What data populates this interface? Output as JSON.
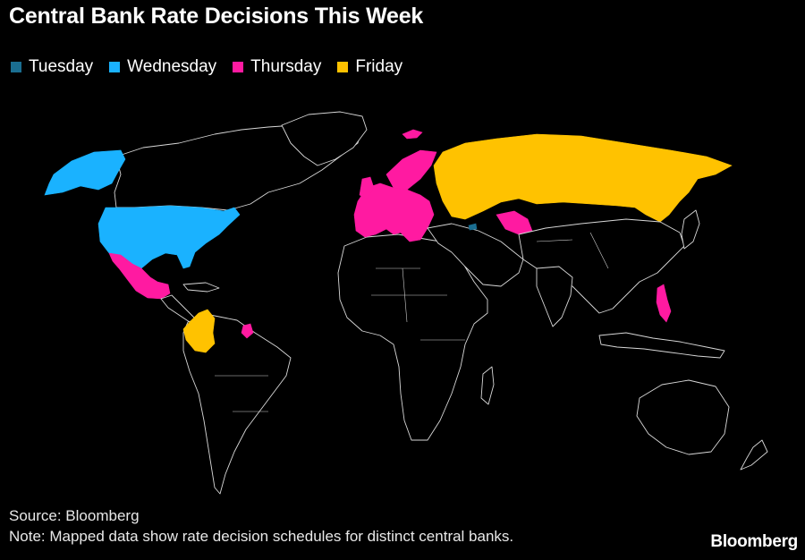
{
  "title": "Central Bank Rate Decisions This Week",
  "legend": [
    {
      "label": "Tuesday",
      "color": "#1a6e91"
    },
    {
      "label": "Wednesday",
      "color": "#1ab2ff"
    },
    {
      "label": "Thursday",
      "color": "#ff1aa1"
    },
    {
      "label": "Friday",
      "color": "#ffc200"
    }
  ],
  "map": {
    "regions": [
      {
        "name": "Alaska",
        "day": "Wednesday"
      },
      {
        "name": "United States",
        "day": "Wednesday"
      },
      {
        "name": "Mexico",
        "day": "Thursday"
      },
      {
        "name": "Colombia",
        "day": "Friday"
      },
      {
        "name": "Suriname",
        "day": "Thursday"
      },
      {
        "name": "Europe",
        "day": "Thursday"
      },
      {
        "name": "Norway",
        "day": "Thursday"
      },
      {
        "name": "Svalbard",
        "day": "Thursday"
      },
      {
        "name": "Uzbekistan",
        "day": "Thursday"
      },
      {
        "name": "Kazakhstan",
        "day": "Thursday"
      },
      {
        "name": "Philippines",
        "day": "Thursday"
      },
      {
        "name": "Russia",
        "day": "Friday"
      },
      {
        "name": "Georgia",
        "day": "Tuesday"
      }
    ]
  },
  "source": "Source: Bloomberg",
  "note": "Note: Mapped data show rate decision schedules for distinct central banks.",
  "brand": "Bloomberg"
}
